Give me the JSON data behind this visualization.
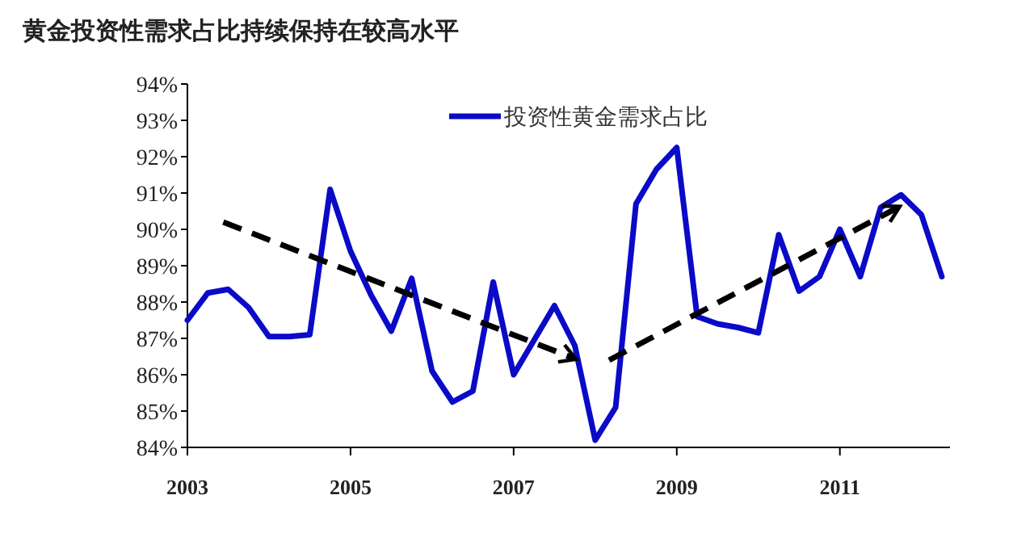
{
  "chart_data": {
    "type": "line",
    "title": "黄金投资性需求占比持续保持在较高水平",
    "xlim": [
      2003,
      2012.35
    ],
    "xticks": [
      2003,
      2005,
      2007,
      2009,
      2011
    ],
    "ylim": [
      84,
      94
    ],
    "yticks": [
      {
        "value": 84,
        "label": "84%"
      },
      {
        "value": 85,
        "label": "85%"
      },
      {
        "value": 86,
        "label": "86%"
      },
      {
        "value": 87,
        "label": "87%"
      },
      {
        "value": 88,
        "label": "88%"
      },
      {
        "value": 89,
        "label": "89%"
      },
      {
        "value": 90,
        "label": "90%"
      },
      {
        "value": 91,
        "label": "91%"
      },
      {
        "value": 92,
        "label": "92%"
      },
      {
        "value": 93,
        "label": "93%"
      },
      {
        "value": 94,
        "label": "94%"
      }
    ],
    "legend": "top",
    "grid": false,
    "series": [
      {
        "name": "投资性黄金需求占比",
        "color": "#0a0ac8",
        "line_style": "solid",
        "x": [
          2003,
          2003.25,
          2003.5,
          2003.75,
          2004,
          2004.25,
          2004.5,
          2004.75,
          2005,
          2005.25,
          2005.5,
          2005.75,
          2006,
          2006.25,
          2006.5,
          2006.75,
          2007,
          2007.25,
          2007.5,
          2007.75,
          2008,
          2008.25,
          2008.5,
          2008.75,
          2009,
          2009.25,
          2009.5,
          2009.75,
          2010,
          2010.25,
          2010.5,
          2010.75,
          2011,
          2011.25,
          2011.5,
          2011.75,
          2012,
          2012.25
        ],
        "values": [
          87.5,
          88.25,
          88.35,
          87.85,
          87.05,
          87.05,
          87.1,
          91.1,
          89.4,
          88.2,
          87.2,
          88.65,
          86.1,
          85.25,
          85.55,
          88.55,
          86.0,
          86.95,
          87.9,
          86.8,
          84.2,
          85.1,
          90.7,
          91.65,
          92.25,
          87.6,
          87.4,
          87.3,
          87.15,
          89.85,
          88.3,
          88.7,
          90.0,
          88.7,
          90.6,
          90.95,
          90.4,
          88.7
        ]
      },
      {
        "type": "line",
        "color": "#000000",
        "line_style": "dashed",
        "x": [
          2003.44,
          2007.74
        ],
        "values": [
          90.2,
          86.45
        ]
      },
      {
        "type": "line",
        "color": "#000000",
        "line_style": "dashed",
        "x": [
          2008.17,
          2011.71
        ],
        "values": [
          86.4,
          90.6
        ]
      }
    ]
  }
}
